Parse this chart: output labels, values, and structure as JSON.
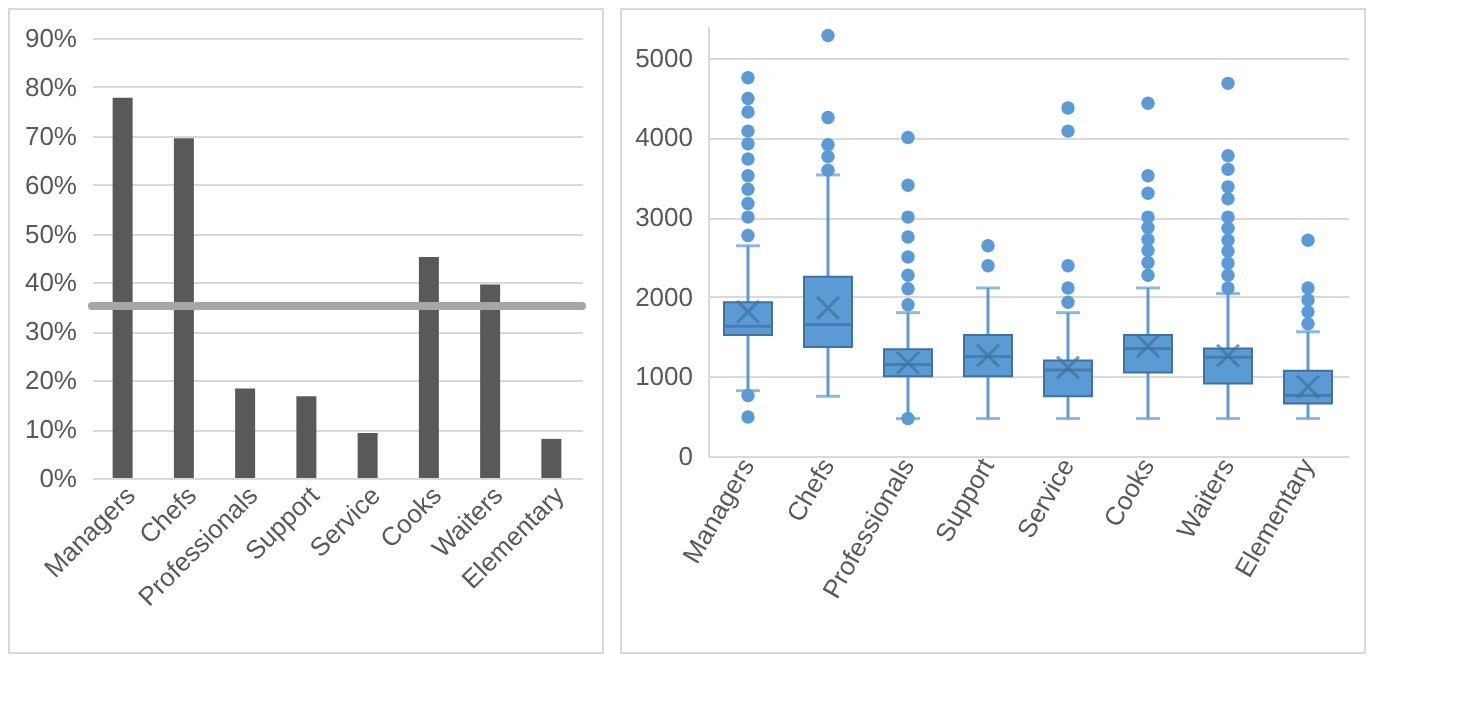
{
  "chart_data": [
    {
      "type": "bar",
      "categories": [
        "Managers",
        "Chefs",
        "Professionals",
        "Support",
        "Service",
        "Cooks",
        "Waiters",
        "Elementary"
      ],
      "values": [
        77.8,
        69.5,
        18.3,
        16.7,
        9.2,
        45.2,
        39.6,
        8.0
      ],
      "color": "#595959",
      "ylim": [
        0,
        90
      ],
      "yticks": [
        {
          "value": 0,
          "label": "0%"
        },
        {
          "value": 10,
          "label": "10%"
        },
        {
          "value": 20,
          "label": "20%"
        },
        {
          "value": 30,
          "label": "30%"
        },
        {
          "value": 40,
          "label": "40%"
        },
        {
          "value": 50,
          "label": "50%"
        },
        {
          "value": 60,
          "label": "60%"
        },
        {
          "value": 70,
          "label": "70%"
        },
        {
          "value": 80,
          "label": "80%"
        },
        {
          "value": 90,
          "label": "90%"
        }
      ],
      "grid": "y",
      "ref_lines": [
        {
          "axis": "y",
          "value": 35.2,
          "color": "#a6a6a6"
        }
      ]
    },
    {
      "type": "box",
      "categories": [
        "Managers",
        "Chefs",
        "Professionals",
        "Support",
        "Service",
        "Cooks",
        "Waiters",
        "Elementary"
      ],
      "color": "#5b9bd5",
      "boxes": [
        {
          "low": 820,
          "q1": 1520,
          "median": 1630,
          "q3": 1930,
          "high": 2640,
          "mean": 1810,
          "outliers": [
            4750,
            4490,
            4320,
            4080,
            3920,
            3730,
            3520,
            3350,
            3170,
            3000,
            2770,
            760,
            490
          ]
        },
        {
          "low": 750,
          "q1": 1370,
          "median": 1650,
          "q3": 2250,
          "high": 3530,
          "mean": 1860,
          "outliers": [
            5280,
            4250,
            3910,
            3760,
            3590
          ]
        },
        {
          "low": 470,
          "q1": 1000,
          "median": 1150,
          "q3": 1340,
          "high": 1800,
          "mean": 1170,
          "outliers": [
            4000,
            3400,
            3000,
            2750,
            2500,
            2270,
            2100,
            1900,
            470
          ]
        },
        {
          "low": 470,
          "q1": 1000,
          "median": 1250,
          "q3": 1520,
          "high": 2110,
          "mean": 1260,
          "outliers": [
            2640,
            2390
          ]
        },
        {
          "low": 470,
          "q1": 750,
          "median": 1080,
          "q3": 1200,
          "high": 1800,
          "mean": 1110,
          "outliers": [
            4370,
            4080,
            2390,
            2110,
            1930
          ]
        },
        {
          "low": 470,
          "q1": 1050,
          "median": 1350,
          "q3": 1520,
          "high": 2110,
          "mean": 1380,
          "outliers": [
            4430,
            3520,
            3300,
            3000,
            2870,
            2720,
            2580,
            2430,
            2270
          ]
        },
        {
          "low": 470,
          "q1": 910,
          "median": 1240,
          "q3": 1350,
          "high": 2040,
          "mean": 1260,
          "outliers": [
            4680,
            3770,
            3600,
            3380,
            3230,
            3000,
            2860,
            2710,
            2570,
            2420,
            2270,
            2110
          ]
        },
        {
          "low": 470,
          "q1": 660,
          "median": 760,
          "q3": 1070,
          "high": 1560,
          "mean": 870,
          "outliers": [
            2710,
            2110,
            1960,
            1810,
            1660
          ]
        }
      ],
      "ylim": [
        0,
        5400
      ],
      "yticks": [
        0,
        1000,
        2000,
        3000,
        4000,
        5000
      ],
      "grid": "y"
    }
  ]
}
